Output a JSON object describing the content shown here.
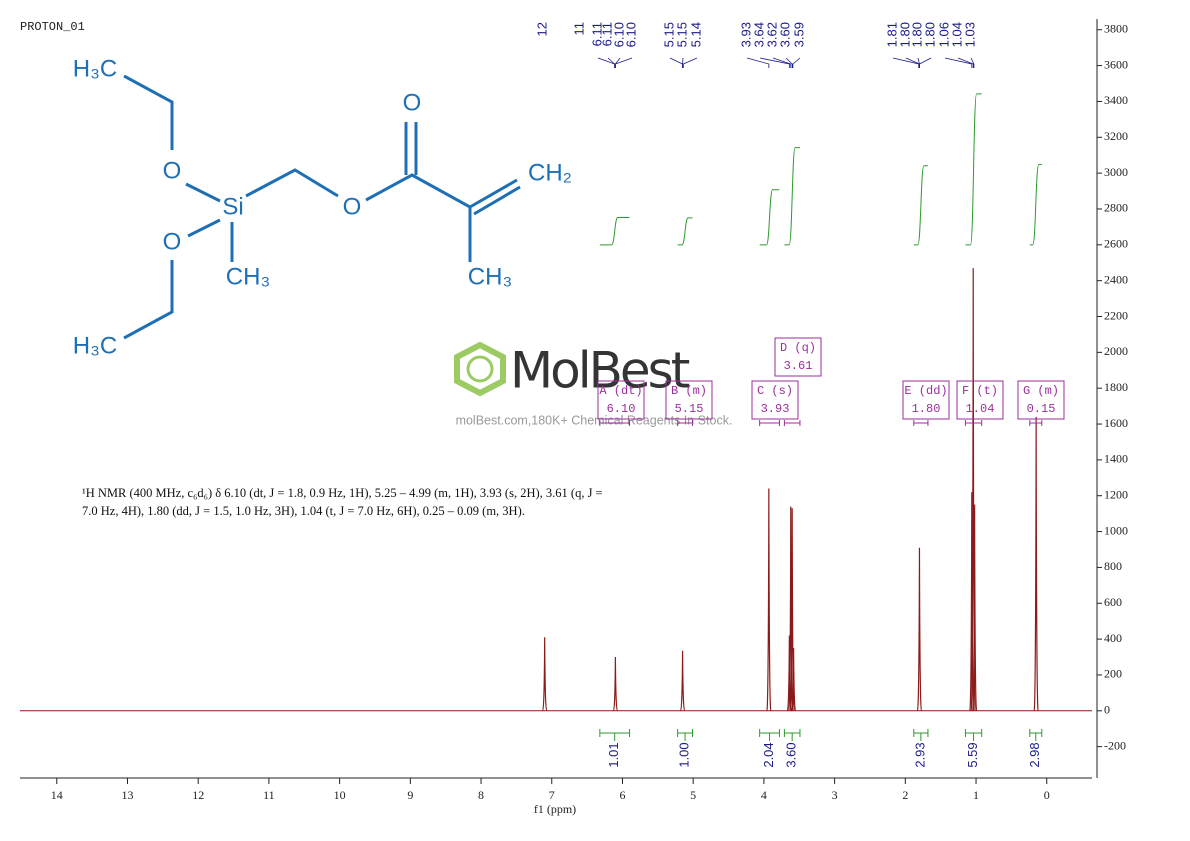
{
  "title": "PROTON_01",
  "watermark": {
    "brand": "MolBest",
    "tagline": "molBest.com,180K+ Chemical Reagents In Stock."
  },
  "molecule": {
    "atoms": [
      "H₃C",
      "O",
      "Si",
      "O",
      "CH₃",
      "H₃C",
      "O",
      "O",
      "CH₂",
      "CH₃"
    ]
  },
  "description": [
    "¹H NMR (400 MHz, c₆d₆) δ 6.10 (dt, J = 1.8, 0.9 Hz, 1H), 5.25 – 4.99 (m, 1H), 3.93 (s, 2H), 3.61 (q, J =",
    "7.0 Hz, 4H), 1.80 (dd, J = 1.5, 1.0 Hz, 3H), 1.04 (t, J = 7.0 Hz, 6H), 0.25 – 0.09 (m, 3H)."
  ],
  "peak_labels": [
    "12",
    "11",
    "6.11",
    "6.11",
    "6.10",
    "6.10",
    "5.15",
    "5.15",
    "5.14",
    "3.93",
    "3.64",
    "3.62",
    "3.60",
    "3.59",
    "1.81",
    "1.80",
    "1.80",
    "1.80",
    "1.06",
    "1.04",
    "1.03"
  ],
  "multiplets": {
    "names": [
      "A (dt)",
      "B (m)",
      "C (s)",
      "D (q)",
      "E (dd)",
      "F (t)",
      "G (m)"
    ],
    "shifts": [
      6.1,
      5.15,
      3.93,
      3.61,
      1.8,
      1.04,
      0.15
    ],
    "shift_labels": [
      "6.10",
      "5.15",
      "3.93",
      "3.61",
      "1.80",
      "1.04",
      "0.15"
    ]
  },
  "chart_data": {
    "type": "nmr",
    "xlabel": "f1 (ppm)",
    "x": [
      7.1,
      6.1,
      5.15,
      3.93,
      3.64,
      3.62,
      3.6,
      3.58,
      1.8,
      1.06,
      1.04,
      1.02,
      0.15
    ],
    "values": [
      410,
      300,
      335,
      1240,
      420,
      1140,
      1130,
      350,
      910,
      1220,
      2470,
      1150,
      1640
    ],
    "color": "#8b1a1a",
    "integrals": {
      "ranges": [
        [
          6.32,
          5.9
        ],
        [
          5.22,
          5.01
        ],
        [
          4.06,
          3.78
        ],
        [
          3.71,
          3.49
        ],
        [
          1.88,
          1.68
        ],
        [
          1.15,
          0.92
        ],
        [
          0.24,
          0.07
        ]
      ],
      "values": [
        1.01,
        1,
        2.04,
        3.6,
        2.93,
        5.59,
        2.98
      ],
      "value_labels": [
        "1.01",
        "1.00",
        "2.04",
        "3.60",
        "2.93",
        "5.59",
        "2.98"
      ],
      "color": "#2e9a2e"
    },
    "xlim": [
      14.52,
      -0.64
    ],
    "xticks": [
      14,
      13,
      12,
      11,
      10,
      9,
      8,
      7,
      6,
      5,
      4,
      3,
      2,
      1,
      0
    ],
    "ylim": [
      -375,
      3860
    ],
    "yticks": [
      -200,
      0,
      200,
      400,
      600,
      800,
      1000,
      1200,
      1400,
      1600,
      1800,
      2000,
      2200,
      2400,
      2600,
      2800,
      3000,
      3200,
      3400,
      3600,
      3800
    ]
  }
}
